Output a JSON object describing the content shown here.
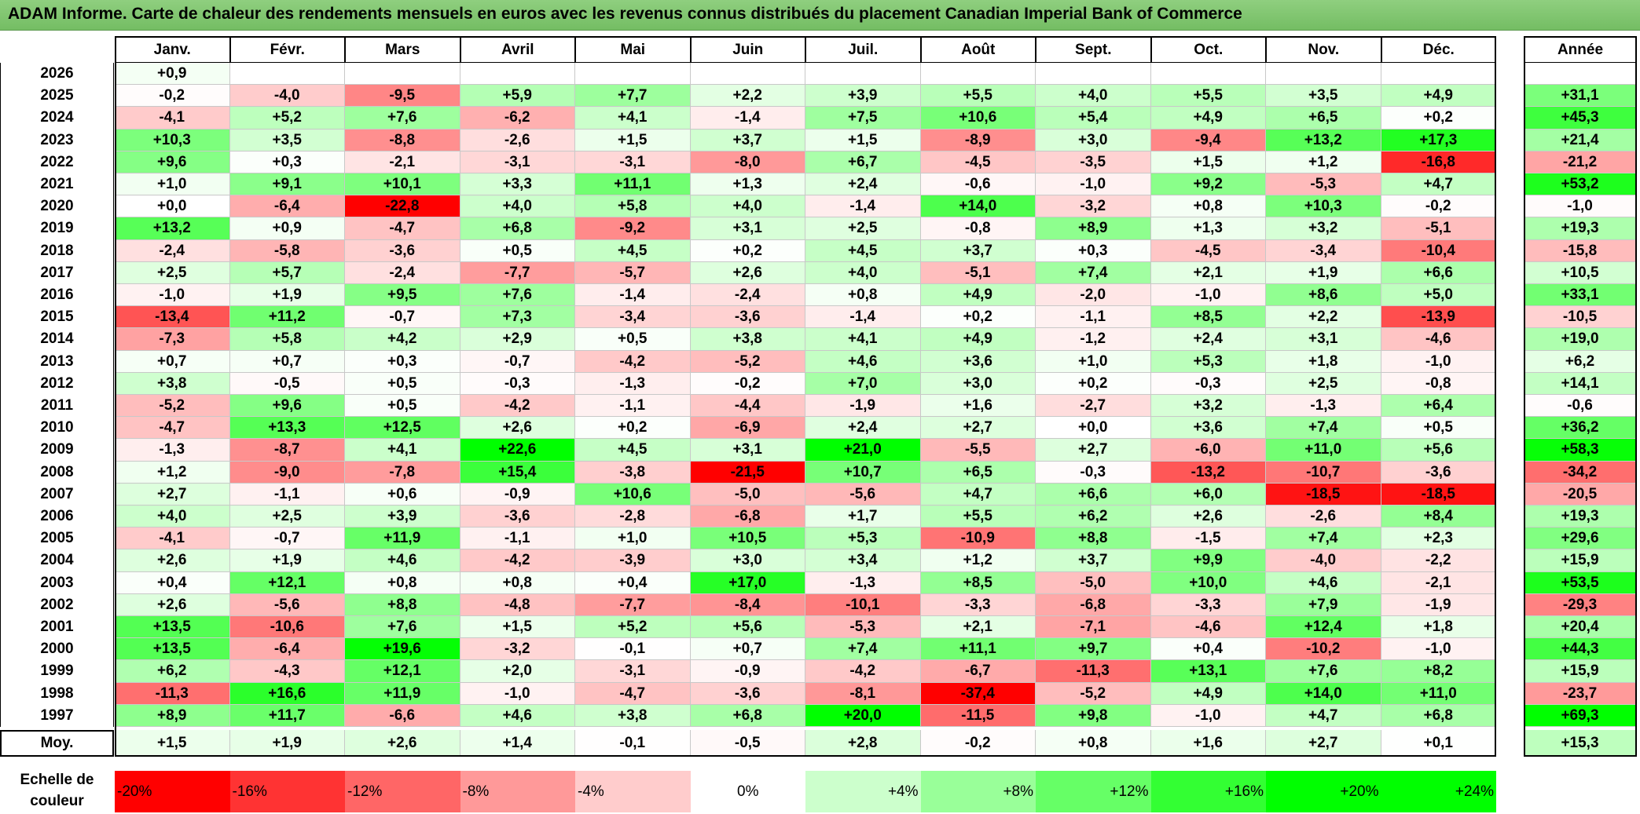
{
  "title": "ADAM Informe. Carte de chaleur des rendements mensuels en euros avec les revenus connus distribués du placement Canadian Imperial Bank of Commerce",
  "chart_data": {
    "type": "heatmap",
    "months": [
      "Janv.",
      "Févr.",
      "Mars",
      "Avril",
      "Mai",
      "Juin",
      "Juil.",
      "Août",
      "Sept.",
      "Oct.",
      "Nov.",
      "Déc."
    ],
    "annual_header": "Année",
    "rows": [
      {
        "year": "2026",
        "values": [
          "+0,9",
          null,
          null,
          null,
          null,
          null,
          null,
          null,
          null,
          null,
          null,
          null
        ],
        "annual": ""
      },
      {
        "year": "2025",
        "values": [
          "-0,2",
          "-4,0",
          "-9,5",
          "+5,9",
          "+7,7",
          "+2,2",
          "+3,9",
          "+5,5",
          "+4,0",
          "+5,5",
          "+3,5",
          "+4,9"
        ],
        "annual": "+31,1"
      },
      {
        "year": "2024",
        "values": [
          "-4,1",
          "+5,2",
          "+7,6",
          "-6,2",
          "+4,1",
          "-1,4",
          "+7,5",
          "+10,6",
          "+5,4",
          "+4,9",
          "+6,5",
          "+0,2"
        ],
        "annual": "+45,3"
      },
      {
        "year": "2023",
        "values": [
          "+10,3",
          "+3,5",
          "-8,8",
          "-2,6",
          "+1,5",
          "+3,7",
          "+1,5",
          "-8,9",
          "+3,0",
          "-9,4",
          "+13,2",
          "+17,3"
        ],
        "annual": "+21,4"
      },
      {
        "year": "2022",
        "values": [
          "+9,6",
          "+0,3",
          "-2,1",
          "-3,1",
          "-3,1",
          "-8,0",
          "+6,7",
          "-4,5",
          "-3,5",
          "+1,5",
          "+1,2",
          "-16,8"
        ],
        "annual": "-21,2"
      },
      {
        "year": "2021",
        "values": [
          "+1,0",
          "+9,1",
          "+10,1",
          "+3,3",
          "+11,1",
          "+1,3",
          "+2,4",
          "-0,6",
          "-1,0",
          "+9,2",
          "-5,3",
          "+4,7"
        ],
        "annual": "+53,2"
      },
      {
        "year": "2020",
        "values": [
          "+0,0",
          "-6,4",
          "-22,8",
          "+4,0",
          "+5,8",
          "+4,0",
          "-1,4",
          "+14,0",
          "-3,2",
          "+0,8",
          "+10,3",
          "-0,2"
        ],
        "annual": "-1,0"
      },
      {
        "year": "2019",
        "values": [
          "+13,2",
          "+0,9",
          "-4,7",
          "+6,8",
          "-9,2",
          "+3,1",
          "+2,5",
          "-0,8",
          "+8,9",
          "+1,3",
          "+3,2",
          "-5,1"
        ],
        "annual": "+19,3"
      },
      {
        "year": "2018",
        "values": [
          "-2,4",
          "-5,8",
          "-3,6",
          "+0,5",
          "+4,5",
          "+0,2",
          "+4,5",
          "+3,7",
          "+0,3",
          "-4,5",
          "-3,4",
          "-10,4"
        ],
        "annual": "-15,8"
      },
      {
        "year": "2017",
        "values": [
          "+2,5",
          "+5,7",
          "-2,4",
          "-7,7",
          "-5,7",
          "+2,6",
          "+4,0",
          "-5,1",
          "+7,4",
          "+2,1",
          "+1,9",
          "+6,6"
        ],
        "annual": "+10,5"
      },
      {
        "year": "2016",
        "values": [
          "-1,0",
          "+1,9",
          "+9,5",
          "+7,6",
          "-1,4",
          "-2,4",
          "+0,8",
          "+4,9",
          "-2,0",
          "-1,0",
          "+8,6",
          "+5,0"
        ],
        "annual": "+33,1"
      },
      {
        "year": "2015",
        "values": [
          "-13,4",
          "+11,2",
          "-0,7",
          "+7,3",
          "-3,4",
          "-3,6",
          "-1,4",
          "+0,2",
          "-1,1",
          "+8,5",
          "+2,2",
          "-13,9"
        ],
        "annual": "-10,5"
      },
      {
        "year": "2014",
        "values": [
          "-7,3",
          "+5,8",
          "+4,2",
          "+2,9",
          "+0,5",
          "+3,8",
          "+4,1",
          "+4,9",
          "-1,2",
          "+2,4",
          "+3,1",
          "-4,6"
        ],
        "annual": "+19,0"
      },
      {
        "year": "2013",
        "values": [
          "+0,7",
          "+0,7",
          "+0,3",
          "-0,7",
          "-4,2",
          "-5,2",
          "+4,6",
          "+3,6",
          "+1,0",
          "+5,3",
          "+1,8",
          "-1,0"
        ],
        "annual": "+6,2"
      },
      {
        "year": "2012",
        "values": [
          "+3,8",
          "-0,5",
          "+0,5",
          "-0,3",
          "-1,3",
          "-0,2",
          "+7,0",
          "+3,0",
          "+0,2",
          "-0,3",
          "+2,5",
          "-0,8"
        ],
        "annual": "+14,1"
      },
      {
        "year": "2011",
        "values": [
          "-5,2",
          "+9,6",
          "+0,5",
          "-4,2",
          "-1,1",
          "-4,4",
          "-1,9",
          "+1,6",
          "-2,7",
          "+3,2",
          "-1,3",
          "+6,4"
        ],
        "annual": "-0,6"
      },
      {
        "year": "2010",
        "values": [
          "-4,7",
          "+13,3",
          "+12,5",
          "+2,6",
          "+0,2",
          "-6,9",
          "+2,4",
          "+2,7",
          "+0,0",
          "+3,6",
          "+7,4",
          "+0,5"
        ],
        "annual": "+36,2"
      },
      {
        "year": "2009",
        "values": [
          "-1,3",
          "-8,7",
          "+4,1",
          "+22,6",
          "+4,5",
          "+3,1",
          "+21,0",
          "-5,5",
          "+2,7",
          "-6,0",
          "+11,0",
          "+5,6"
        ],
        "annual": "+58,3"
      },
      {
        "year": "2008",
        "values": [
          "+1,2",
          "-9,0",
          "-7,8",
          "+15,4",
          "-3,8",
          "-21,5",
          "+10,7",
          "+6,5",
          "-0,3",
          "-13,2",
          "-10,7",
          "-3,6"
        ],
        "annual": "-34,2"
      },
      {
        "year": "2007",
        "values": [
          "+2,7",
          "-1,1",
          "+0,6",
          "-0,9",
          "+10,6",
          "-5,0",
          "-5,6",
          "+4,7",
          "+6,6",
          "+6,0",
          "-18,5",
          "-18,5"
        ],
        "annual": "-20,5"
      },
      {
        "year": "2006",
        "values": [
          "+4,0",
          "+2,5",
          "+3,9",
          "-3,6",
          "-2,8",
          "-6,8",
          "+1,7",
          "+5,5",
          "+6,2",
          "+2,6",
          "-2,6",
          "+8,4"
        ],
        "annual": "+19,3"
      },
      {
        "year": "2005",
        "values": [
          "-4,1",
          "-0,7",
          "+11,9",
          "-1,1",
          "+1,0",
          "+10,5",
          "+5,3",
          "-10,9",
          "+8,8",
          "-1,5",
          "+7,4",
          "+2,3"
        ],
        "annual": "+29,6"
      },
      {
        "year": "2004",
        "values": [
          "+2,6",
          "+1,9",
          "+4,6",
          "-4,2",
          "-3,9",
          "+3,0",
          "+3,4",
          "+1,2",
          "+3,7",
          "+9,9",
          "-4,0",
          "-2,2"
        ],
        "annual": "+15,9"
      },
      {
        "year": "2003",
        "values": [
          "+0,4",
          "+12,1",
          "+0,8",
          "+0,8",
          "+0,4",
          "+17,0",
          "-1,3",
          "+8,5",
          "-5,0",
          "+10,0",
          "+4,6",
          "-2,1"
        ],
        "annual": "+53,5"
      },
      {
        "year": "2002",
        "values": [
          "+2,6",
          "-5,6",
          "+8,8",
          "-4,8",
          "-7,7",
          "-8,4",
          "-10,1",
          "-3,3",
          "-6,8",
          "-3,3",
          "+7,9",
          "-1,9"
        ],
        "annual": "-29,3"
      },
      {
        "year": "2001",
        "values": [
          "+13,5",
          "-10,6",
          "+7,6",
          "+1,5",
          "+5,2",
          "+5,6",
          "-5,3",
          "+2,1",
          "-7,1",
          "-4,6",
          "+12,4",
          "+1,8"
        ],
        "annual": "+20,4"
      },
      {
        "year": "2000",
        "values": [
          "+13,5",
          "-6,4",
          "+19,6",
          "-3,2",
          "-0,1",
          "+0,7",
          "+7,4",
          "+11,1",
          "+9,7",
          "+0,4",
          "-10,2",
          "-1,0"
        ],
        "annual": "+44,3"
      },
      {
        "year": "1999",
        "values": [
          "+6,2",
          "-4,3",
          "+12,1",
          "+2,0",
          "-3,1",
          "-0,9",
          "-4,2",
          "-6,7",
          "-11,3",
          "+13,1",
          "+7,6",
          "+8,2"
        ],
        "annual": "+15,9"
      },
      {
        "year": "1998",
        "values": [
          "-11,3",
          "+16,6",
          "+11,9",
          "-1,0",
          "-4,7",
          "-3,6",
          "-8,1",
          "-37,4",
          "-5,2",
          "+4,9",
          "+14,0",
          "+11,0"
        ],
        "annual": "-23,7"
      },
      {
        "year": "1997",
        "values": [
          "+8,9",
          "+11,7",
          "-6,6",
          "+4,6",
          "+3,8",
          "+6,8",
          "+20,0",
          "-11,5",
          "+9,8",
          "-1,0",
          "+4,7",
          "+6,8"
        ],
        "annual": "+69,3"
      }
    ],
    "average": {
      "label": "Moy.",
      "values": [
        "+1,5",
        "+1,9",
        "+2,6",
        "+1,4",
        "-0,1",
        "-0,5",
        "+2,8",
        "-0,2",
        "+0,8",
        "+1,6",
        "+2,7",
        "+0,1"
      ],
      "annual": "+15,3"
    },
    "scale": {
      "label_line1": "Echelle de",
      "label_line2": "couleur",
      "items": [
        "-20%",
        "-16%",
        "-12%",
        "-8%",
        "-4%",
        "0%",
        "+4%",
        "+8%",
        "+12%",
        "+16%",
        "+20%",
        "+24%"
      ]
    },
    "colors": {
      "negative": "#ff0000",
      "neutral": "#ffffff",
      "positive": "#00ff00",
      "title_bg": "#7cc36b"
    }
  }
}
